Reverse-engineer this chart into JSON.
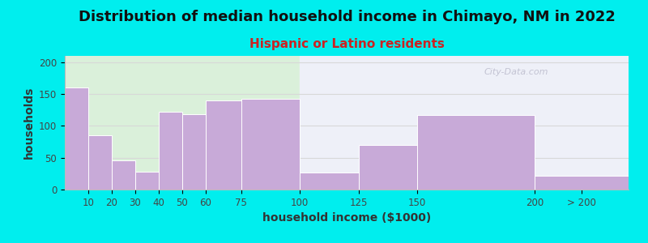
{
  "title": "Distribution of median household income in Chimayo, NM in 2022",
  "subtitle": "Hispanic or Latino residents",
  "xlabel": "household income ($1000)",
  "ylabel": "households",
  "background_outer": "#00EEEE",
  "bar_color": "#c8aad8",
  "bar_edge_color": "#ffffff",
  "categories": [
    "10",
    "20",
    "30",
    "40",
    "50",
    "60",
    "75",
    "100",
    "125",
    "150",
    "200",
    "> 200"
  ],
  "values": [
    160,
    85,
    46,
    28,
    122,
    118,
    140,
    143,
    27,
    70,
    117,
    22
  ],
  "bar_lefts": [
    0,
    10,
    20,
    30,
    40,
    50,
    60,
    75,
    100,
    125,
    150,
    200
  ],
  "bar_rights": [
    10,
    20,
    30,
    40,
    50,
    60,
    75,
    100,
    125,
    150,
    200,
    240
  ],
  "tick_positions": [
    10,
    20,
    30,
    40,
    50,
    60,
    75,
    100,
    125,
    150,
    200,
    220
  ],
  "ylim": [
    0,
    210
  ],
  "xlim": [
    0,
    240
  ],
  "yticks": [
    0,
    50,
    100,
    150,
    200
  ],
  "title_fontsize": 13,
  "subtitle_fontsize": 11,
  "subtitle_color": "#cc2222",
  "axis_label_fontsize": 10,
  "tick_fontsize": 8.5,
  "watermark_text": "City-Data.com",
  "watermark_color": "#bbbbcc",
  "bg_left_color": "#daf0da",
  "bg_right_color": "#eef0f8",
  "grid_color": "#d8d8d8"
}
